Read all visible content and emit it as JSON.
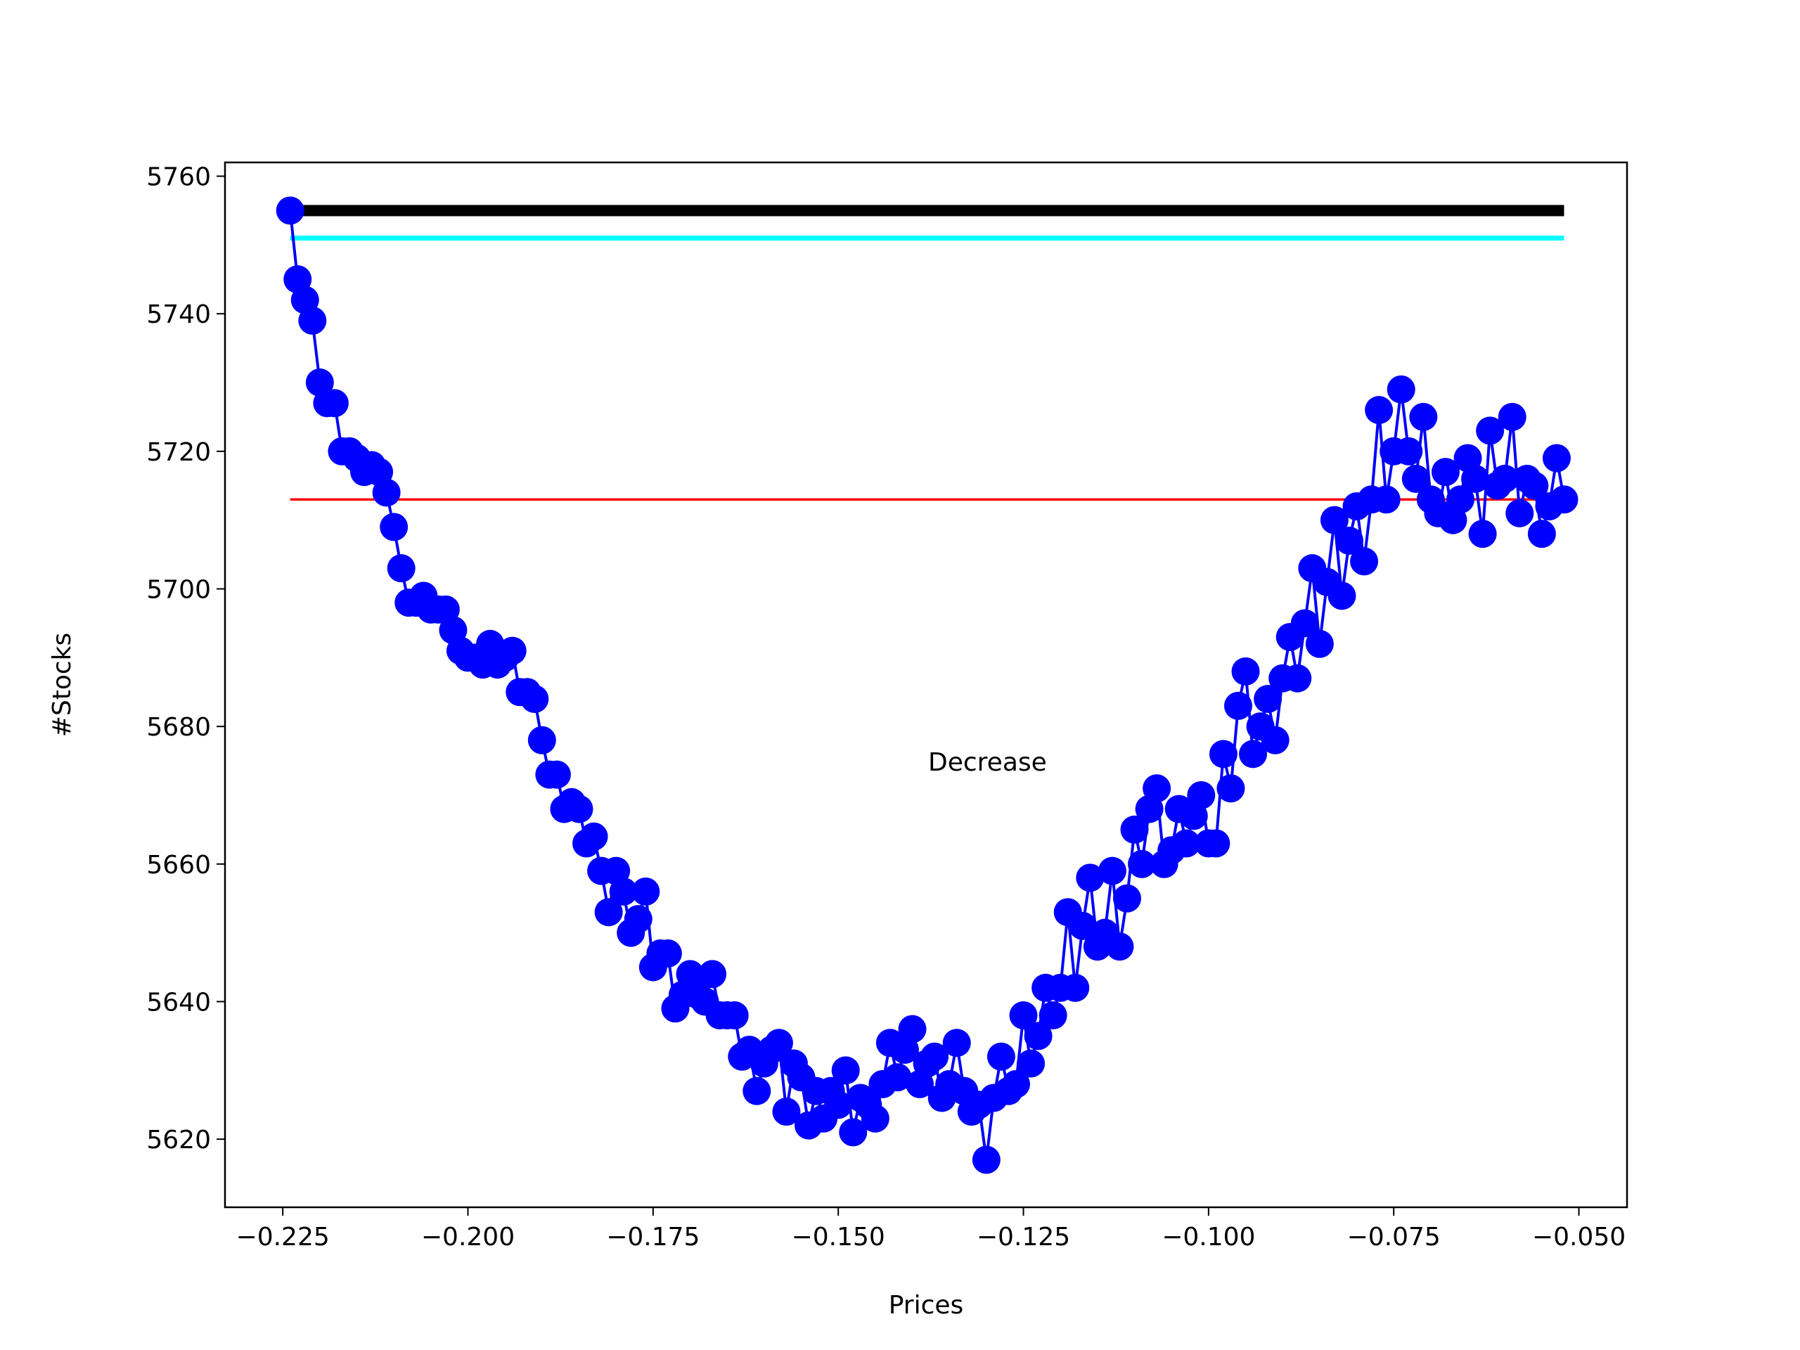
{
  "chart_data": {
    "type": "line",
    "xlabel": "Prices",
    "ylabel": "#Stocks",
    "annotation": "Decrease",
    "xlim": [
      -0.2328,
      -0.0435
    ],
    "ylim": [
      5610.1,
      5762
    ],
    "xticks": [
      {
        "value": -0.225,
        "label": "−0.225"
      },
      {
        "value": -0.2,
        "label": "−0.200"
      },
      {
        "value": -0.175,
        "label": "−0.175"
      },
      {
        "value": -0.15,
        "label": "−0.150"
      },
      {
        "value": -0.125,
        "label": "−0.125"
      },
      {
        "value": -0.1,
        "label": "−0.100"
      },
      {
        "value": -0.075,
        "label": "−0.075"
      },
      {
        "value": -0.05,
        "label": "−0.050"
      }
    ],
    "yticks": [
      5620,
      5640,
      5660,
      5680,
      5700,
      5720,
      5740,
      5760
    ],
    "hlines": [
      {
        "value": 5755,
        "color": "#000000"
      },
      {
        "value": 5751,
        "color": "#00ffff"
      },
      {
        "value": 5713,
        "color": "#ff0000"
      }
    ],
    "series": [
      {
        "color": "#0000ff",
        "marker": "circle",
        "x": [
          -0.224,
          -0.223,
          -0.222,
          -0.221,
          -0.22,
          -0.219,
          -0.218,
          -0.217,
          -0.216,
          -0.215,
          -0.214,
          -0.213,
          -0.212,
          -0.211,
          -0.21,
          -0.209,
          -0.208,
          -0.207,
          -0.206,
          -0.205,
          -0.204,
          -0.203,
          -0.202,
          -0.201,
          -0.2,
          -0.199,
          -0.198,
          -0.197,
          -0.196,
          -0.195,
          -0.194,
          -0.193,
          -0.192,
          -0.191,
          -0.19,
          -0.189,
          -0.188,
          -0.187,
          -0.186,
          -0.185,
          -0.184,
          -0.183,
          -0.182,
          -0.181,
          -0.18,
          -0.179,
          -0.178,
          -0.177,
          -0.176,
          -0.175,
          -0.174,
          -0.173,
          -0.172,
          -0.171,
          -0.17,
          -0.169,
          -0.168,
          -0.167,
          -0.166,
          -0.165,
          -0.164,
          -0.163,
          -0.162,
          -0.161,
          -0.16,
          -0.159,
          -0.158,
          -0.157,
          -0.156,
          -0.155,
          -0.154,
          -0.153,
          -0.152,
          -0.151,
          -0.15,
          -0.149,
          -0.148,
          -0.147,
          -0.146,
          -0.145,
          -0.144,
          -0.143,
          -0.142,
          -0.141,
          -0.14,
          -0.139,
          -0.138,
          -0.137,
          -0.136,
          -0.135,
          -0.134,
          -0.133,
          -0.132,
          -0.131,
          -0.13,
          -0.129,
          -0.128,
          -0.127,
          -0.126,
          -0.125,
          -0.124,
          -0.123,
          -0.122,
          -0.121,
          -0.12,
          -0.119,
          -0.118,
          -0.117,
          -0.116,
          -0.115,
          -0.114,
          -0.113,
          -0.112,
          -0.111,
          -0.11,
          -0.109,
          -0.108,
          -0.107,
          -0.106,
          -0.105,
          -0.104,
          -0.103,
          -0.102,
          -0.101,
          -0.1,
          -0.099,
          -0.098,
          -0.097,
          -0.096,
          -0.095,
          -0.094,
          -0.093,
          -0.092,
          -0.091,
          -0.09,
          -0.089,
          -0.088,
          -0.087,
          -0.086,
          -0.085,
          -0.084,
          -0.083,
          -0.082,
          -0.081,
          -0.08,
          -0.079,
          -0.078,
          -0.077,
          -0.076,
          -0.075,
          -0.074,
          -0.073,
          -0.072,
          -0.071,
          -0.07,
          -0.069,
          -0.068,
          -0.067,
          -0.066,
          -0.065,
          -0.064,
          -0.063,
          -0.062,
          -0.061,
          -0.06,
          -0.059,
          -0.058,
          -0.057,
          -0.056,
          -0.055,
          -0.054,
          -0.053,
          -0.052
        ],
        "values": [
          5755,
          5745,
          5742,
          5739,
          5730,
          5727,
          5727,
          5720,
          5720,
          5719,
          5717,
          5718,
          5717,
          5714,
          5709,
          5703,
          5698,
          5698,
          5699,
          5697,
          5697,
          5697,
          5694,
          5691,
          5690,
          5690,
          5689,
          5692,
          5689,
          5690,
          5691,
          5685,
          5685,
          5684,
          5678,
          5673,
          5673,
          5668,
          5669,
          5668,
          5663,
          5664,
          5659,
          5653,
          5659,
          5656,
          5650,
          5652,
          5656,
          5645,
          5647,
          5647,
          5639,
          5641,
          5644,
          5641,
          5640,
          5644,
          5638,
          5638,
          5638,
          5632,
          5633,
          5627,
          5631,
          5633,
          5634,
          5624,
          5631,
          5629,
          5622,
          5627,
          5623,
          5627,
          5625,
          5630,
          5621,
          5626,
          5625,
          5623,
          5628,
          5634,
          5629,
          5633,
          5636,
          5628,
          5631,
          5632,
          5626,
          5628,
          5634,
          5627,
          5624,
          5625,
          5617,
          5626,
          5632,
          5627,
          5628,
          5638,
          5631,
          5635,
          5642,
          5638,
          5642,
          5653,
          5642,
          5651,
          5658,
          5648,
          5650,
          5659,
          5648,
          5655,
          5665,
          5660,
          5668,
          5671,
          5660,
          5662,
          5668,
          5663,
          5667,
          5670,
          5663,
          5663,
          5676,
          5671,
          5683,
          5688,
          5676,
          5680,
          5684,
          5678,
          5687,
          5693,
          5687,
          5695,
          5703,
          5692,
          5701,
          5710,
          5699,
          5707,
          5712,
          5704,
          5713,
          5726,
          5713,
          5720,
          5729,
          5720,
          5716,
          5725,
          5713,
          5711,
          5717,
          5710,
          5713,
          5719,
          5716,
          5708,
          5723,
          5715,
          5716,
          5725,
          5711,
          5716,
          5715,
          5708,
          5712,
          5719,
          5713
        ]
      }
    ]
  }
}
